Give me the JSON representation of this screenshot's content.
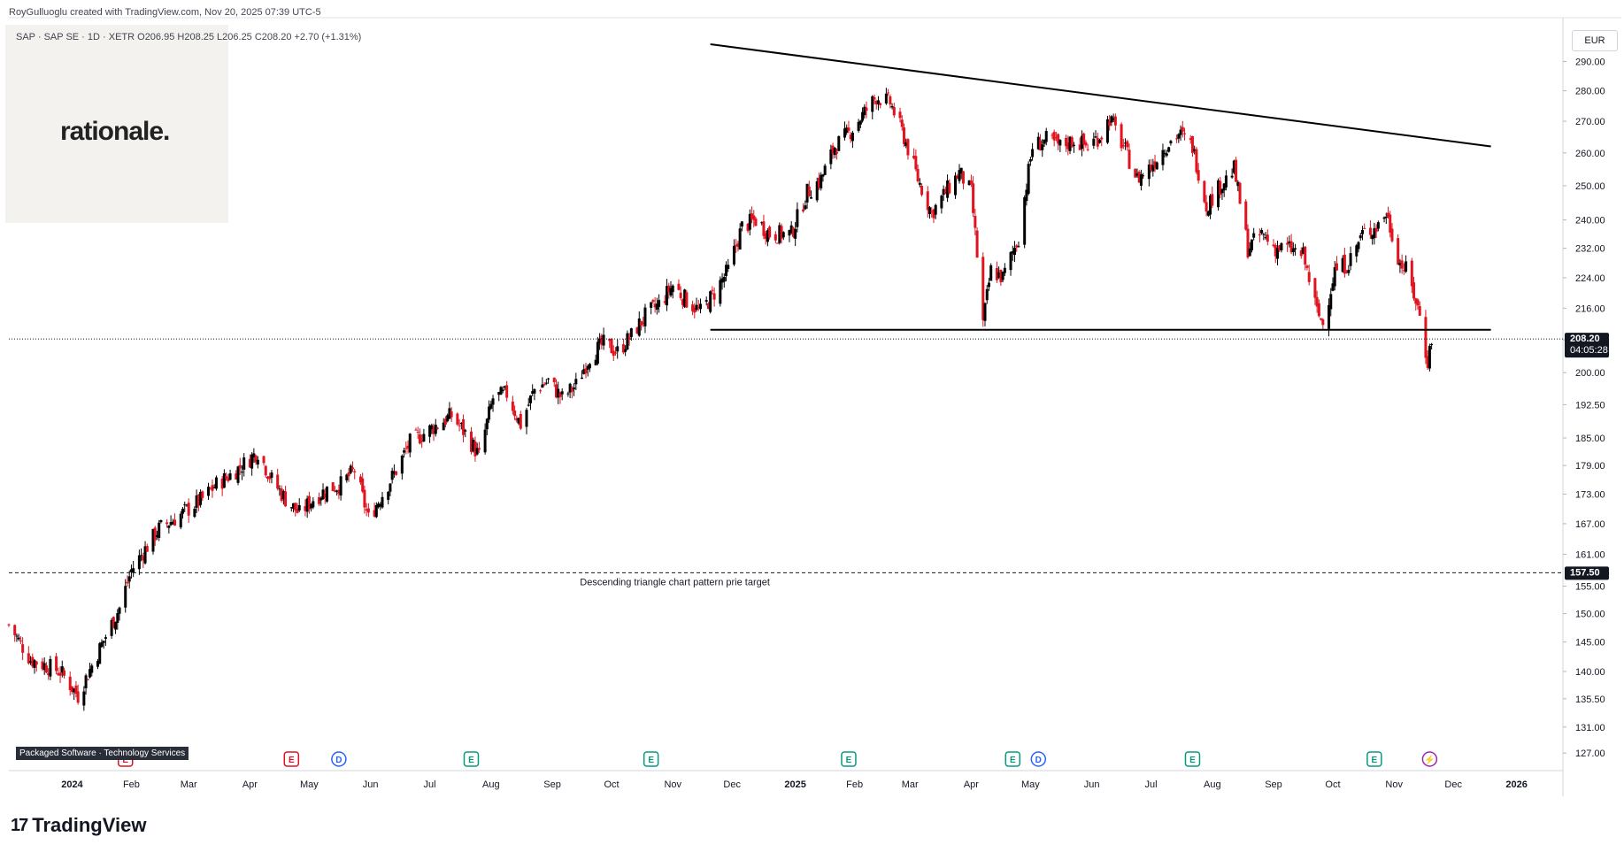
{
  "header": {
    "credit": "RoyGulluoglu created with TradingView.com, Nov 20, 2025 07:39 UTC-5",
    "symbol_line": "SAP · SAP SE · 1D · XETR  O206.95  H208.25  L206.25  C208.20  +2.70 (+1.31%)"
  },
  "logo": {
    "text": "rationale."
  },
  "currency": "EUR",
  "sector_label": "Packaged Software · Technology Services",
  "brand": {
    "mark": "17",
    "name": "TradingView"
  },
  "colors": {
    "up": "#000000",
    "down": "#e0131f",
    "grid": "#f0f3fa",
    "axis_text": "#131722"
  },
  "chart_data": {
    "type": "candlestick",
    "symbol": "SAP",
    "y_scale": "log",
    "price_ticks": [
      127,
      131,
      135.5,
      140,
      145,
      150,
      155,
      161,
      167,
      173,
      179,
      185,
      192.5,
      200,
      208,
      216,
      224,
      232,
      240,
      250,
      260,
      270,
      280,
      290
    ],
    "x_ticks": [
      {
        "label": "2024",
        "date": "2024-01-02",
        "bold": true
      },
      {
        "label": "Feb",
        "date": "2024-02-01"
      },
      {
        "label": "Mar",
        "date": "2024-03-01"
      },
      {
        "label": "Apr",
        "date": "2024-04-01"
      },
      {
        "label": "May",
        "date": "2024-05-01"
      },
      {
        "label": "Jun",
        "date": "2024-06-01"
      },
      {
        "label": "Jul",
        "date": "2024-07-01"
      },
      {
        "label": "Aug",
        "date": "2024-08-01"
      },
      {
        "label": "Sep",
        "date": "2024-09-01"
      },
      {
        "label": "Oct",
        "date": "2024-10-01"
      },
      {
        "label": "Nov",
        "date": "2024-11-01"
      },
      {
        "label": "Dec",
        "date": "2024-12-01"
      },
      {
        "label": "2025",
        "date": "2025-01-02",
        "bold": true
      },
      {
        "label": "Feb",
        "date": "2025-02-01"
      },
      {
        "label": "Mar",
        "date": "2025-03-01"
      },
      {
        "label": "Apr",
        "date": "2025-04-01"
      },
      {
        "label": "May",
        "date": "2025-05-01"
      },
      {
        "label": "Jun",
        "date": "2025-06-01"
      },
      {
        "label": "Jul",
        "date": "2025-07-01"
      },
      {
        "label": "Aug",
        "date": "2025-08-01"
      },
      {
        "label": "Sep",
        "date": "2025-09-01"
      },
      {
        "label": "Oct",
        "date": "2025-10-01"
      },
      {
        "label": "Nov",
        "date": "2025-11-01"
      },
      {
        "label": "Dec",
        "date": "2025-12-01"
      },
      {
        "label": "2026",
        "date": "2026-01-02",
        "bold": true
      }
    ],
    "close_path": [
      [
        "2023-12-01",
        148
      ],
      [
        "2023-12-12",
        142
      ],
      [
        "2023-12-27",
        140
      ],
      [
        "2024-01-05",
        136
      ],
      [
        "2024-01-12",
        141
      ],
      [
        "2024-01-19",
        146
      ],
      [
        "2024-01-26",
        151
      ],
      [
        "2024-02-01",
        158
      ],
      [
        "2024-02-08",
        162
      ],
      [
        "2024-02-15",
        166
      ],
      [
        "2024-02-23",
        168
      ],
      [
        "2024-03-01",
        170
      ],
      [
        "2024-03-08",
        172
      ],
      [
        "2024-03-15",
        175
      ],
      [
        "2024-03-22",
        177
      ],
      [
        "2024-03-28",
        179
      ],
      [
        "2024-04-05",
        182
      ],
      [
        "2024-04-12",
        176
      ],
      [
        "2024-04-19",
        172
      ],
      [
        "2024-04-26",
        169
      ],
      [
        "2024-05-03",
        172
      ],
      [
        "2024-05-10",
        174
      ],
      [
        "2024-05-17",
        175
      ],
      [
        "2024-05-24",
        178
      ],
      [
        "2024-05-31",
        168
      ],
      [
        "2024-06-07",
        173
      ],
      [
        "2024-06-14",
        178
      ],
      [
        "2024-06-21",
        184
      ],
      [
        "2024-06-28",
        186
      ],
      [
        "2024-07-05",
        188
      ],
      [
        "2024-07-12",
        190
      ],
      [
        "2024-07-19",
        186
      ],
      [
        "2024-07-26",
        181
      ],
      [
        "2024-08-02",
        194
      ],
      [
        "2024-08-09",
        195
      ],
      [
        "2024-08-16",
        188
      ],
      [
        "2024-08-23",
        196
      ],
      [
        "2024-08-30",
        198
      ],
      [
        "2024-09-06",
        194
      ],
      [
        "2024-09-13",
        197
      ],
      [
        "2024-09-20",
        204
      ],
      [
        "2024-09-27",
        207
      ],
      [
        "2024-10-04",
        205
      ],
      [
        "2024-10-11",
        209
      ],
      [
        "2024-10-18",
        214
      ],
      [
        "2024-10-25",
        217
      ],
      [
        "2024-11-01",
        222
      ],
      [
        "2024-11-08",
        218
      ],
      [
        "2024-11-15",
        215
      ],
      [
        "2024-11-22",
        220
      ],
      [
        "2024-11-29",
        226
      ],
      [
        "2024-12-06",
        238
      ],
      [
        "2024-12-13",
        240
      ],
      [
        "2024-12-20",
        236
      ],
      [
        "2024-12-31",
        236
      ],
      [
        "2025-01-08",
        248
      ],
      [
        "2025-01-15",
        252
      ],
      [
        "2025-01-22",
        262
      ],
      [
        "2025-01-29",
        266
      ],
      [
        "2025-02-05",
        272
      ],
      [
        "2025-02-12",
        278
      ],
      [
        "2025-02-19",
        276
      ],
      [
        "2025-02-26",
        265
      ],
      [
        "2025-03-05",
        252
      ],
      [
        "2025-03-12",
        242
      ],
      [
        "2025-03-19",
        248
      ],
      [
        "2025-03-26",
        254
      ],
      [
        "2025-04-01",
        248
      ],
      [
        "2025-04-07",
        212
      ],
      [
        "2025-04-11",
        226
      ],
      [
        "2025-04-17",
        224
      ],
      [
        "2025-04-25",
        235
      ],
      [
        "2025-05-02",
        262
      ],
      [
        "2025-05-09",
        264
      ],
      [
        "2025-05-16",
        262
      ],
      [
        "2025-05-23",
        264
      ],
      [
        "2025-05-30",
        262
      ],
      [
        "2025-06-06",
        266
      ],
      [
        "2025-06-10",
        271
      ],
      [
        "2025-06-17",
        262
      ],
      [
        "2025-06-24",
        252
      ],
      [
        "2025-07-01",
        256
      ],
      [
        "2025-07-08",
        262
      ],
      [
        "2025-07-15",
        266
      ],
      [
        "2025-07-22",
        262
      ],
      [
        "2025-07-29",
        244
      ],
      [
        "2025-08-05",
        250
      ],
      [
        "2025-08-12",
        255
      ],
      [
        "2025-08-19",
        232
      ],
      [
        "2025-08-26",
        236
      ],
      [
        "2025-09-02",
        232
      ],
      [
        "2025-09-09",
        232
      ],
      [
        "2025-09-16",
        230
      ],
      [
        "2025-09-23",
        215
      ],
      [
        "2025-09-26",
        212
      ],
      [
        "2025-10-02",
        226
      ],
      [
        "2025-10-09",
        228
      ],
      [
        "2025-10-16",
        236
      ],
      [
        "2025-10-23",
        238
      ],
      [
        "2025-10-28",
        242
      ],
      [
        "2025-11-04",
        228
      ],
      [
        "2025-11-07",
        226
      ],
      [
        "2025-11-12",
        218
      ],
      [
        "2025-11-14",
        214
      ],
      [
        "2025-11-17",
        205
      ],
      [
        "2025-11-18",
        203
      ],
      [
        "2025-11-19",
        205.5
      ],
      [
        "2025-11-20",
        208.2
      ]
    ],
    "last_price": {
      "value": "208.20",
      "countdown": "04:05:28",
      "bg": "#131722"
    },
    "target_price": {
      "value": "157.50",
      "bg": "#131722"
    },
    "trendlines": [
      {
        "name": "resistance",
        "from": [
          "2024-11-20",
          296
        ],
        "to": [
          "2025-12-20",
          262
        ]
      },
      {
        "name": "support",
        "from": [
          "2024-11-20",
          210.5
        ],
        "to": [
          "2025-12-20",
          210.5
        ]
      }
    ],
    "target_line": {
      "value": 157.5,
      "label": "Descending triangle chart pattern prie target"
    },
    "events": [
      {
        "type": "E",
        "date": "2024-01-29",
        "color": "#e0131f"
      },
      {
        "type": "E",
        "date": "2024-04-22",
        "color": "#e0131f"
      },
      {
        "type": "D",
        "date": "2024-05-16",
        "color": "#2962ff"
      },
      {
        "type": "E",
        "date": "2024-07-22",
        "color": "#089981"
      },
      {
        "type": "E",
        "date": "2024-10-21",
        "color": "#089981"
      },
      {
        "type": "E",
        "date": "2025-01-29",
        "color": "#089981"
      },
      {
        "type": "E",
        "date": "2025-04-22",
        "color": "#089981"
      },
      {
        "type": "D",
        "date": "2025-05-05",
        "color": "#2962ff"
      },
      {
        "type": "E",
        "date": "2025-07-22",
        "color": "#089981"
      },
      {
        "type": "E",
        "date": "2025-10-22",
        "color": "#089981"
      },
      {
        "type": "spark",
        "date": "2025-11-19",
        "color": "#9c27b0"
      }
    ]
  }
}
